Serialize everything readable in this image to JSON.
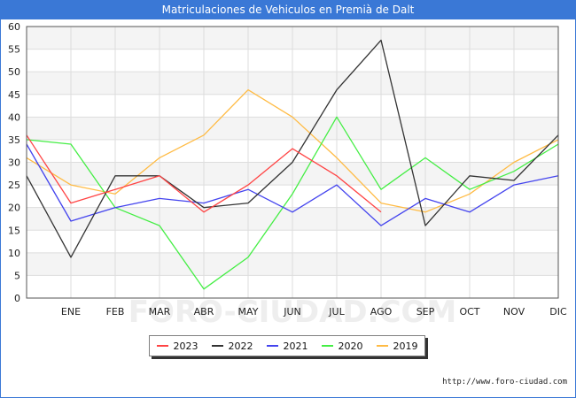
{
  "header": {
    "title": "Matriculaciones de Vehiculos en Premià de Dalt"
  },
  "source": "http://www.foro-ciudad.com",
  "watermark": "FORO-CIUDAD.COM",
  "chart_data": {
    "type": "line",
    "title": "Matriculaciones de Vehiculos en Premià de Dalt",
    "categories": [
      "",
      "ENE",
      "FEB",
      "MAR",
      "ABR",
      "MAY",
      "JUN",
      "JUL",
      "AGO",
      "SEP",
      "OCT",
      "NOV",
      "DIC"
    ],
    "ylim": [
      0,
      60
    ],
    "yticks": [
      0,
      5,
      10,
      15,
      20,
      25,
      30,
      35,
      40,
      45,
      50,
      55,
      60
    ],
    "grid": true,
    "legend_position": "bottom",
    "series": [
      {
        "name": "2023",
        "color": "#ff4444",
        "values": [
          36,
          21,
          24,
          27,
          19,
          25,
          33,
          27,
          19,
          null,
          null,
          null,
          null
        ]
      },
      {
        "name": "2022",
        "color": "#333333",
        "values": [
          27,
          9,
          27,
          27,
          20,
          21,
          30,
          46,
          57,
          16,
          27,
          26,
          36
        ]
      },
      {
        "name": "2021",
        "color": "#4444ee",
        "values": [
          34,
          17,
          20,
          22,
          21,
          24,
          19,
          25,
          16,
          22,
          19,
          25,
          27
        ]
      },
      {
        "name": "2020",
        "color": "#44ee44",
        "values": [
          35,
          34,
          20,
          16,
          2,
          9,
          23,
          40,
          24,
          31,
          24,
          28,
          34
        ]
      },
      {
        "name": "2019",
        "color": "#ffbb44",
        "values": [
          31,
          25,
          23,
          31,
          36,
          46,
          40,
          31,
          21,
          19,
          23,
          30,
          35
        ]
      }
    ]
  }
}
